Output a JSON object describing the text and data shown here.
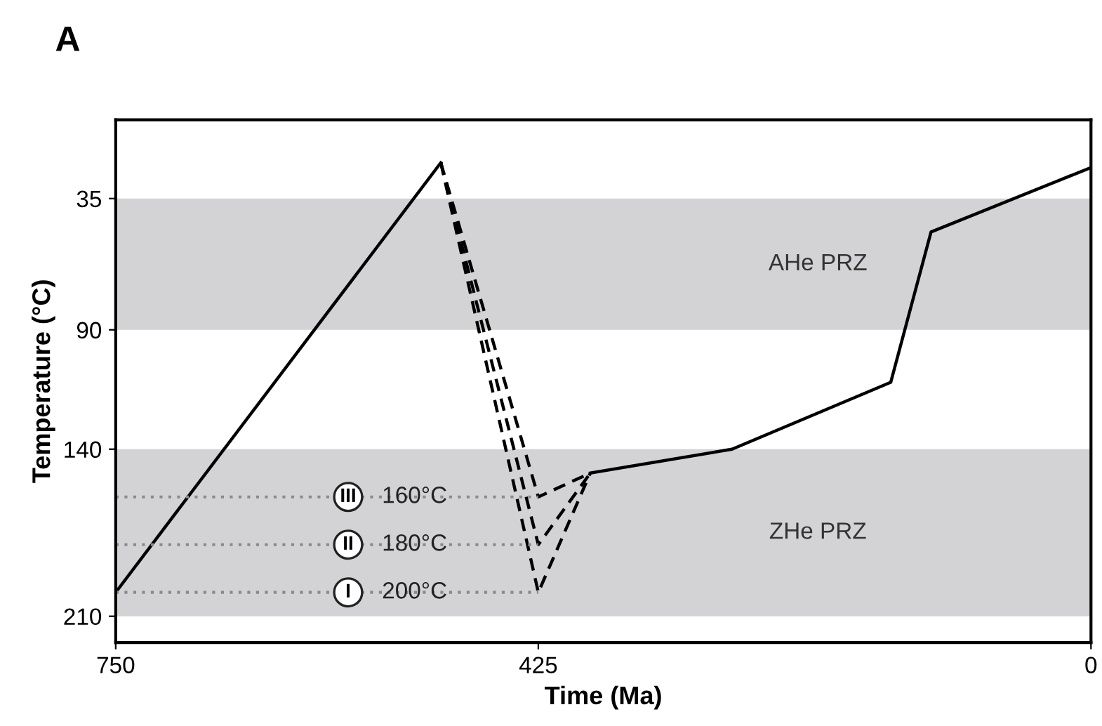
{
  "chart_data": {
    "type": "line",
    "title": "A",
    "xlabel": "Time (Ma)",
    "ylabel": "Temperature (°C)",
    "xlim": [
      750,
      0
    ],
    "xticks": [
      750,
      425,
      0
    ],
    "ylim": [
      221,
      2
    ],
    "yticks": [
      35,
      90,
      140,
      210
    ],
    "grid": false,
    "legend": false,
    "bands": [
      {
        "axis": "y",
        "from": 35,
        "to": 90,
        "label": "AHe PRZ",
        "color": "#d3d3d5"
      },
      {
        "axis": "y",
        "from": 140,
        "to": 210,
        "label": "ZHe PRZ",
        "color": "#d3d3d5"
      }
    ],
    "series": [
      {
        "color": "#000000",
        "line_style": "solid",
        "x": [
          750,
          500
        ],
        "values": [
          200,
          20
        ]
      },
      {
        "color": "#000000",
        "line_style": "solid",
        "x": [
          385,
          276,
          154,
          123,
          0
        ],
        "values": [
          150,
          140,
          112,
          49,
          22
        ]
      },
      {
        "color": "#000000",
        "line_style": "dashed",
        "x": [
          500,
          425,
          385
        ],
        "values": [
          20,
          200,
          150
        ]
      },
      {
        "color": "#000000",
        "line_style": "dashed",
        "x": [
          500,
          425,
          385
        ],
        "values": [
          20,
          180,
          150
        ]
      },
      {
        "color": "#000000",
        "line_style": "dashed",
        "x": [
          500,
          425,
          385
        ],
        "values": [
          20,
          160,
          150
        ]
      },
      {
        "name": "III",
        "color": "#8a8a8a",
        "line_style": "dotted",
        "x": [
          750,
          425
        ],
        "values": [
          160,
          160
        ]
      },
      {
        "name": "II",
        "color": "#8a8a8a",
        "line_style": "dotted",
        "x": [
          750,
          425
        ],
        "values": [
          180,
          180
        ]
      },
      {
        "name": "I",
        "color": "#8a8a8a",
        "line_style": "dotted",
        "x": [
          750,
          425
        ],
        "values": [
          200,
          200
        ]
      }
    ],
    "annotations": [
      {
        "text": "160°C",
        "y": 160
      },
      {
        "text": "180°C",
        "y": 180
      },
      {
        "text": "200°C",
        "y": 200
      }
    ]
  }
}
